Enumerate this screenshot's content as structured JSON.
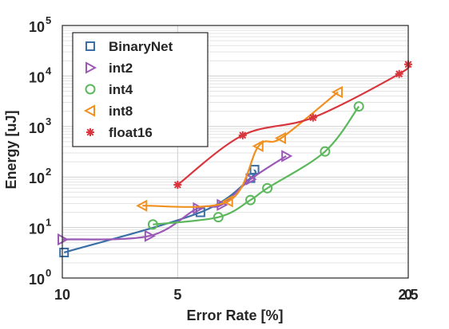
{
  "chart_data": {
    "type": "line",
    "xlabel": "Error Rate [%]",
    "ylabel": "Energy [uJ]",
    "x_axis": {
      "scale": "reciprocal",
      "ticks": [
        {
          "value": 10,
          "label": "10"
        },
        {
          "value": 5,
          "label": "5"
        },
        {
          "value": 2.5,
          "label": "2.5"
        },
        {
          "value": 0,
          "label": "0"
        }
      ]
    },
    "y_axis": {
      "scale": "log",
      "ylim": [
        1,
        100000
      ],
      "ticks": [
        {
          "value": 1,
          "base": "10",
          "exp": "0"
        },
        {
          "value": 10,
          "base": "10",
          "exp": "1"
        },
        {
          "value": 100,
          "base": "10",
          "exp": "2"
        },
        {
          "value": 1000,
          "base": "10",
          "exp": "3"
        },
        {
          "value": 10000,
          "base": "10",
          "exp": "4"
        },
        {
          "value": 100000,
          "base": "10",
          "exp": "5"
        }
      ]
    },
    "grid": true,
    "legend_position": "top-left",
    "series": [
      {
        "name": "BinaryNet",
        "color": "#3a6fa5",
        "marker": "square",
        "points": [
          [
            9.85,
            3.2
          ],
          [
            4.55,
            20
          ],
          [
            3.8,
            95
          ],
          [
            3.75,
            140
          ]
        ]
      },
      {
        "name": "int2",
        "color": "#9b59b6",
        "marker": "triangle-right",
        "points": [
          [
            10.5,
            5.8
          ],
          [
            5.7,
            6.8
          ],
          [
            4.6,
            24
          ],
          [
            4.2,
            28
          ],
          [
            3.8,
            90
          ],
          [
            3.4,
            260
          ]
        ]
      },
      {
        "name": "int4",
        "color": "#5cb85c",
        "marker": "circle",
        "points": [
          [
            5.6,
            11.5
          ],
          [
            4.25,
            16
          ],
          [
            3.8,
            35
          ],
          [
            3.6,
            60
          ],
          [
            3.05,
            320
          ],
          [
            2.8,
            2500
          ]
        ]
      },
      {
        "name": "int8",
        "color": "#f0901f",
        "marker": "triangle-left",
        "points": [
          [
            5.9,
            27
          ],
          [
            4.1,
            33
          ],
          [
            3.7,
            410
          ],
          [
            3.45,
            590
          ],
          [
            2.95,
            4800
          ]
        ]
      },
      {
        "name": "float16",
        "color": "#d9353c",
        "marker": "asterisk",
        "points": [
          [
            5.0,
            70
          ],
          [
            3.9,
            670
          ],
          [
            3.15,
            1500
          ],
          [
            2.55,
            11000
          ],
          [
            2.48,
            17000
          ]
        ]
      }
    ]
  }
}
